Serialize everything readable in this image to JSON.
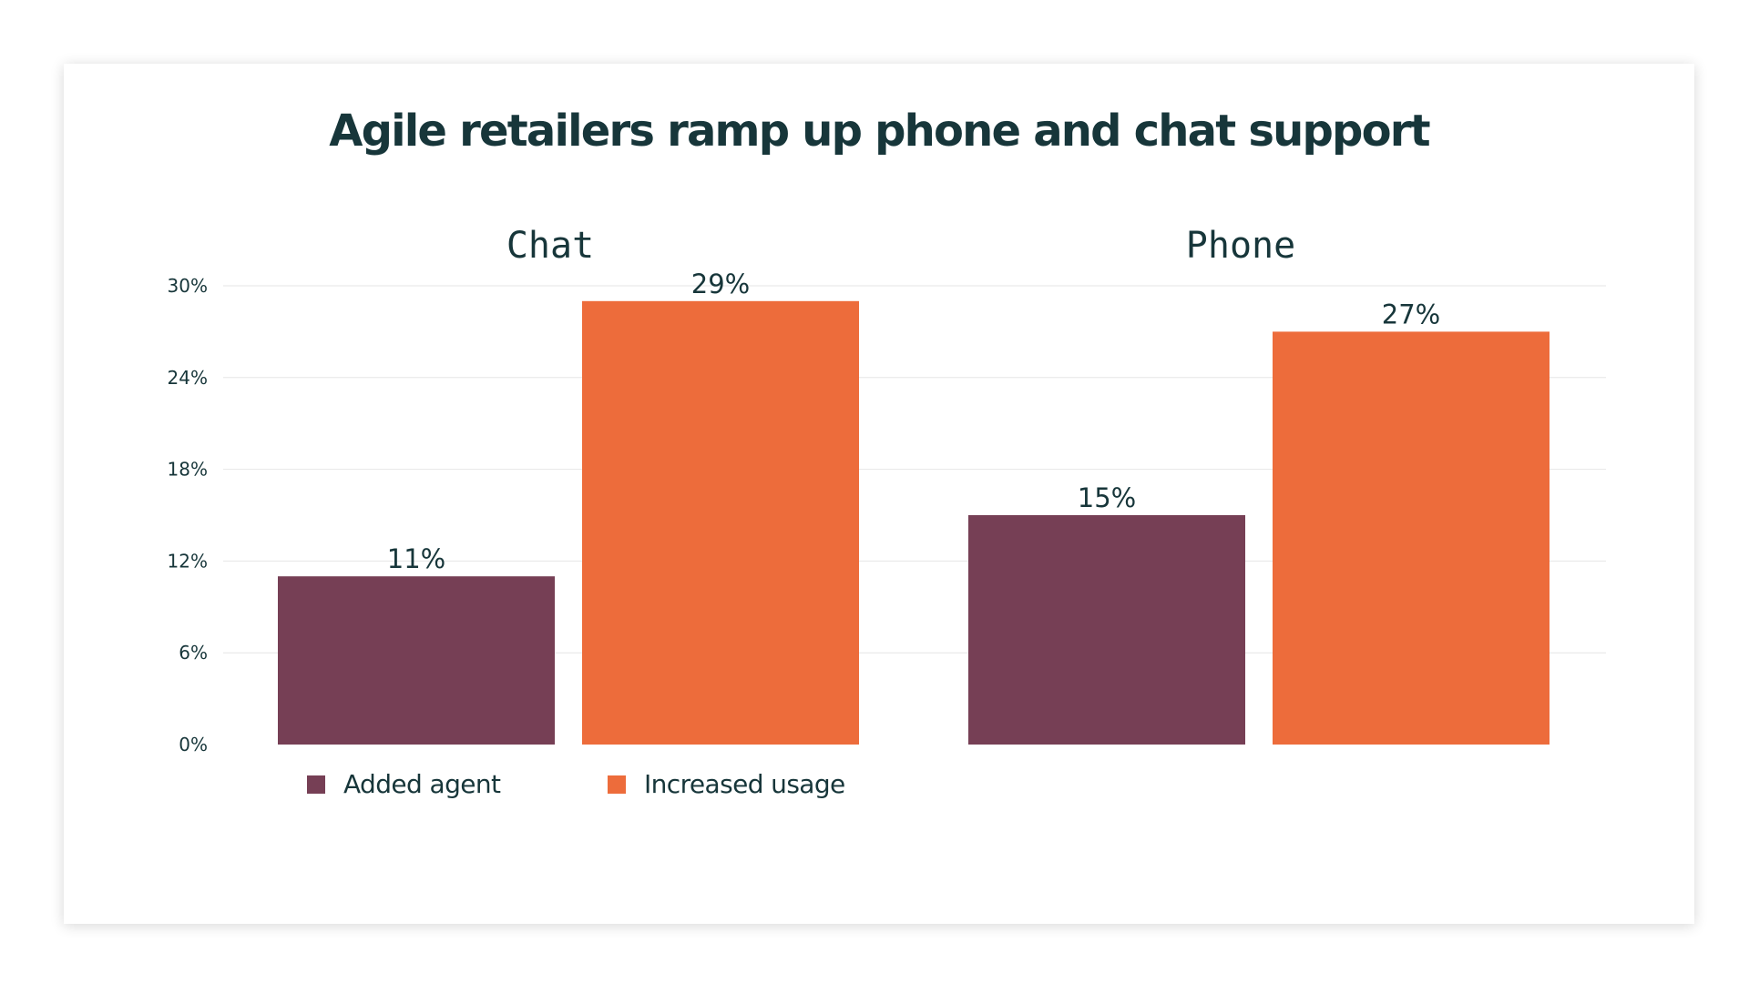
{
  "chart_data": {
    "type": "bar",
    "title": "Agile retailers ramp up phone and chat support",
    "panels": [
      {
        "title": "Chat",
        "values": [
          11,
          29
        ],
        "labels": [
          "11%",
          "29%"
        ]
      },
      {
        "title": "Phone",
        "values": [
          15,
          27
        ],
        "labels": [
          "15%",
          "27%"
        ]
      }
    ],
    "series": [
      {
        "name": "Added agent",
        "color": "#763f55"
      },
      {
        "name": "Increased usage",
        "color": "#ed6c3b"
      }
    ],
    "ylim": [
      0,
      30
    ],
    "yticks": [
      0,
      6,
      12,
      18,
      24,
      30
    ],
    "ytick_labels": [
      "0%",
      "6%",
      "12%",
      "18%",
      "24%",
      "30%"
    ],
    "grid": true,
    "legend_position": "bottom-left"
  }
}
